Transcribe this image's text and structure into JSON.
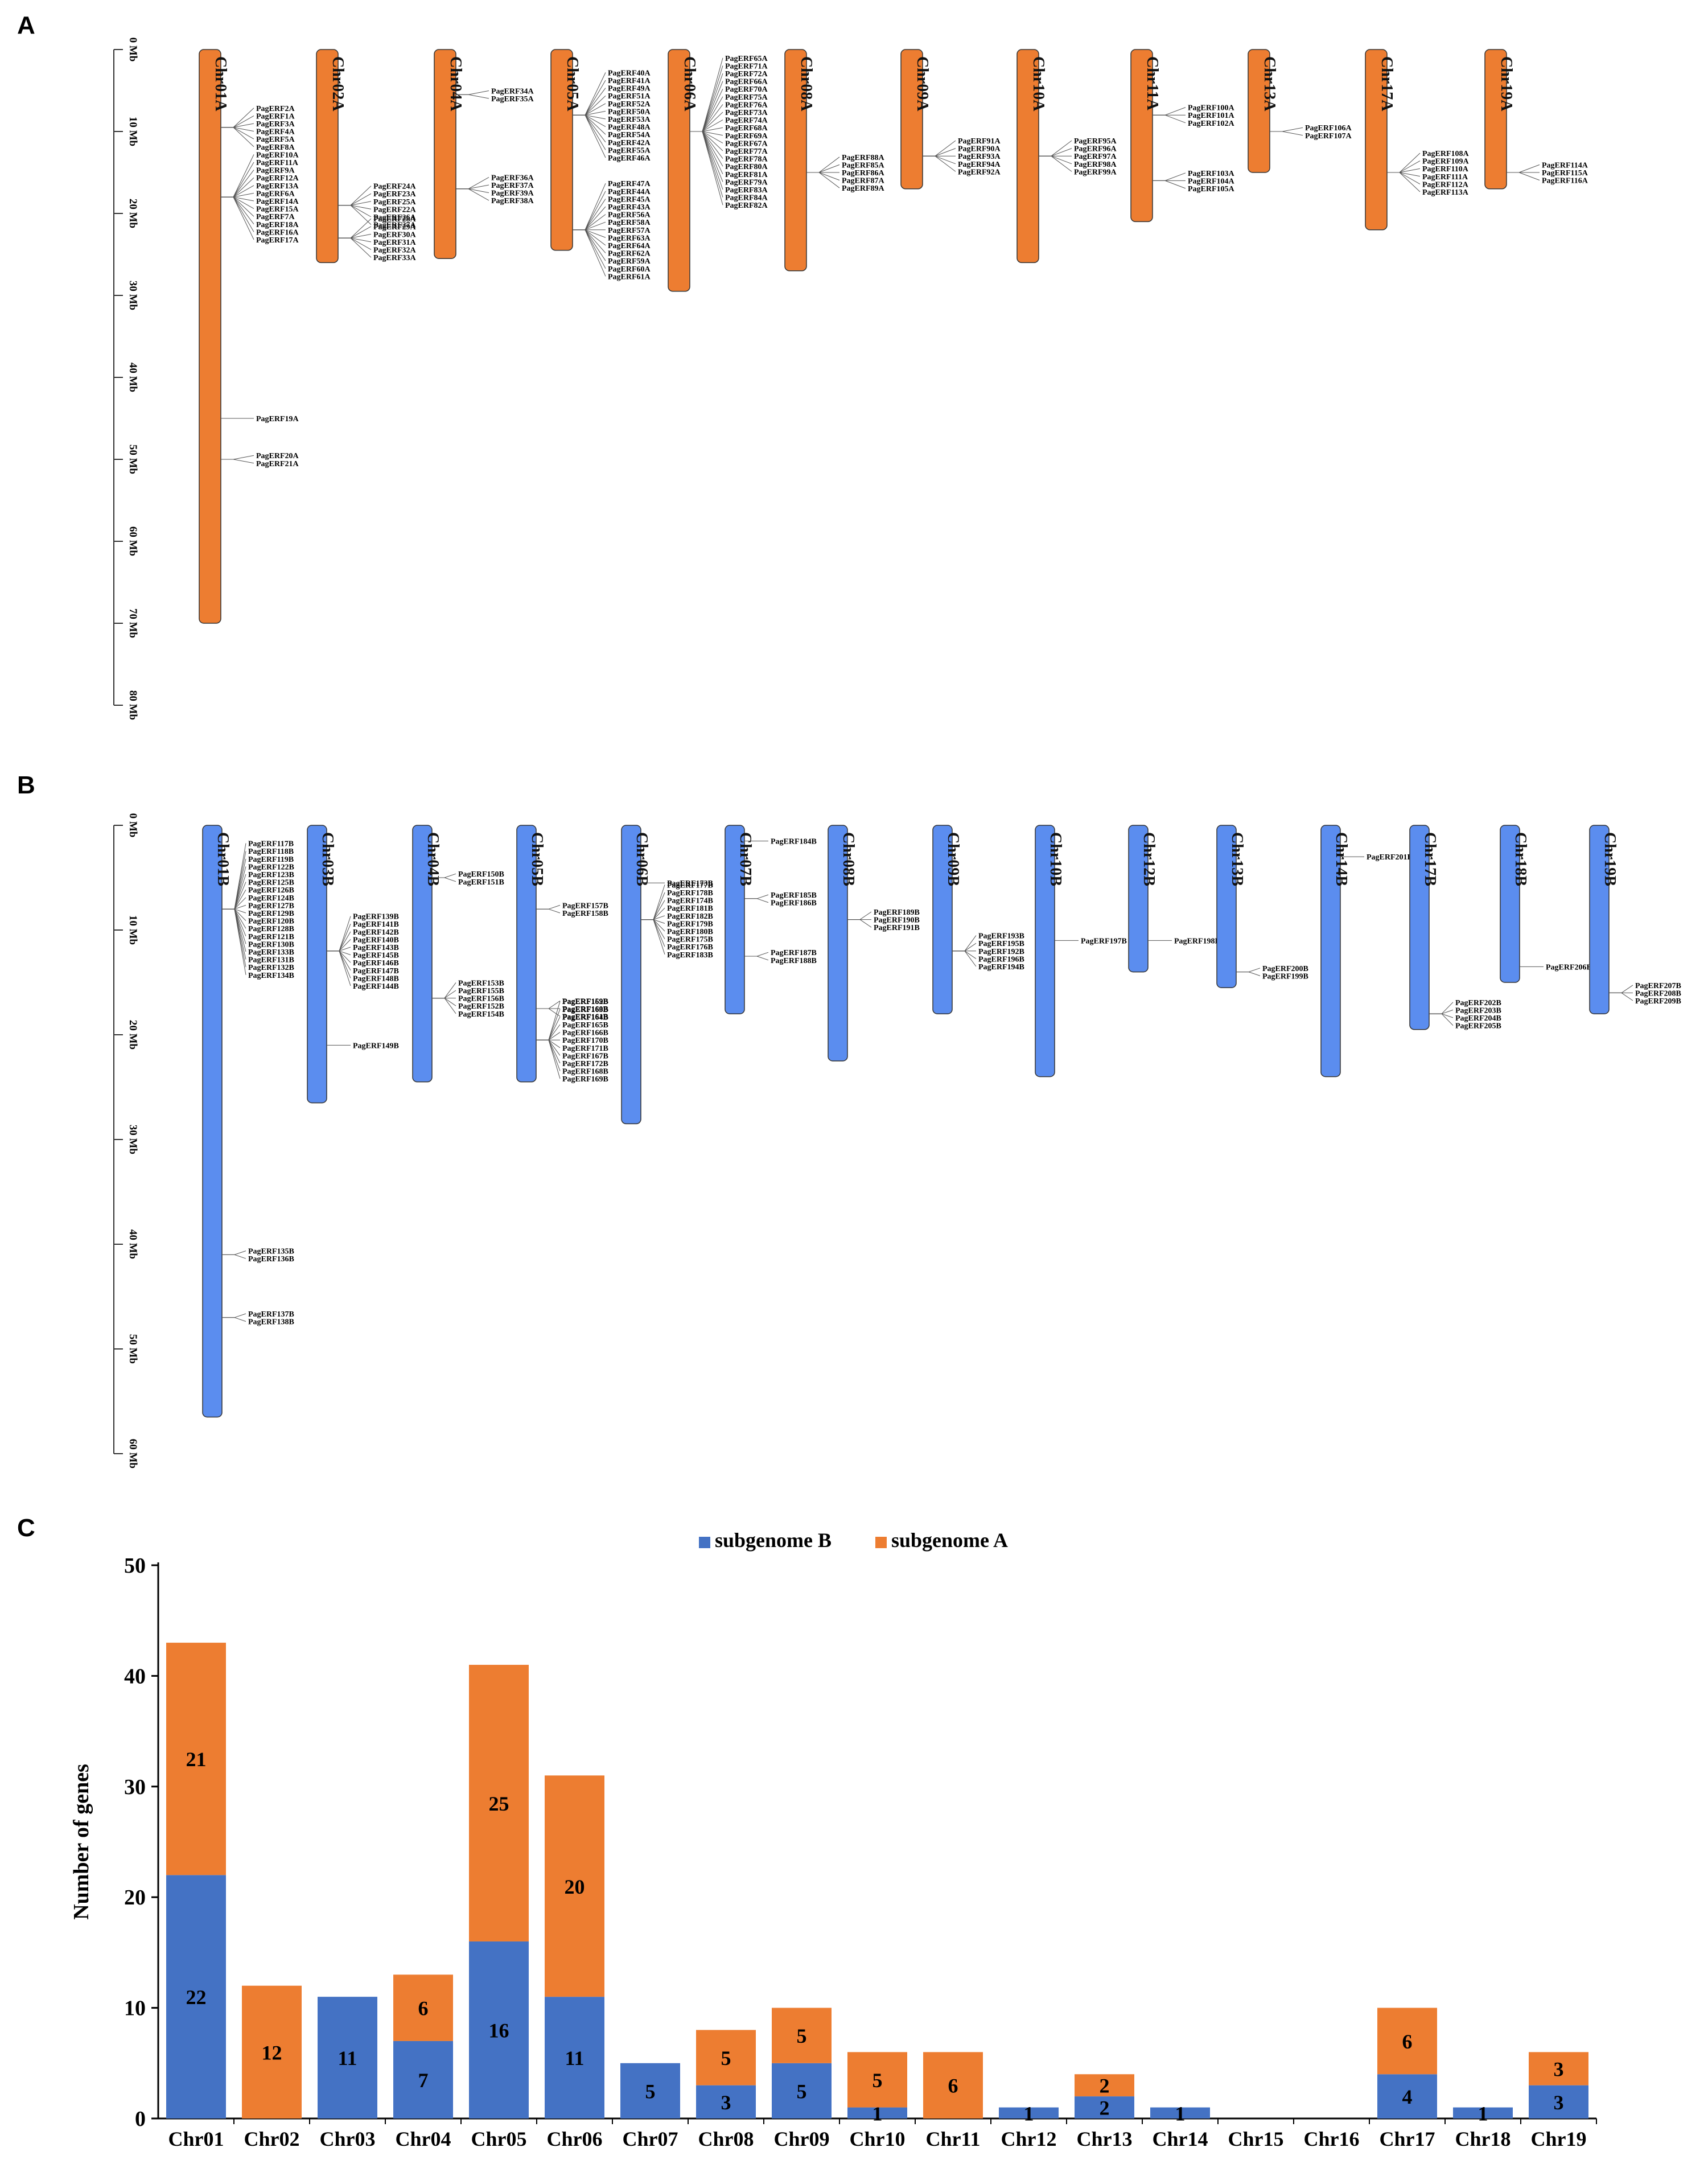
{
  "panels": {
    "a": {
      "label": "A",
      "axis_max_mb": 80,
      "ticks": [
        "0 Mb",
        "10 Mb",
        "20 Mb",
        "30 Mb",
        "40 Mb",
        "50 Mb",
        "60 Mb",
        "70 Mb",
        "80 Mb"
      ],
      "bar_color": "#ed7d31",
      "chromosomes": [
        {
          "name": "Chr01A",
          "length": 70,
          "groups": [
            {
              "pos": 9.5,
              "genes": [
                "PagERF2A",
                "PagERF1A",
                "PagERF3A",
                "PagERF4A",
                "PagERF5A",
                "PagERF8A"
              ]
            },
            {
              "pos": 18,
              "genes": [
                "PagERF10A",
                "PagERF11A",
                "PagERF9A",
                "PagERF12A",
                "PagERF13A",
                "PagERF6A",
                "PagERF14A",
                "PagERF15A",
                "PagERF7A",
                "PagERF18A",
                "PagERF16A",
                "PagERF17A"
              ]
            },
            {
              "pos": 45,
              "genes": [
                "PagERF19A"
              ]
            },
            {
              "pos": 50,
              "genes": [
                "PagERF20A",
                "PagERF21A"
              ]
            }
          ]
        },
        {
          "name": "Chr02A",
          "length": 26,
          "groups": [
            {
              "pos": 19,
              "genes": [
                "PagERF24A",
                "PagERF23A",
                "PagERF25A",
                "PagERF22A",
                "PagERF26A",
                "PagERF27A"
              ]
            },
            {
              "pos": 23,
              "genes": [
                "PagERF28A",
                "PagERF29A",
                "PagERF30A",
                "PagERF31A",
                "PagERF32A",
                "PagERF33A"
              ]
            }
          ]
        },
        {
          "name": "Chr04A",
          "length": 25.5,
          "groups": [
            {
              "pos": 5.5,
              "genes": [
                "PagERF34A",
                "PagERF35A"
              ]
            },
            {
              "pos": 17,
              "genes": [
                "PagERF36A",
                "PagERF37A",
                "PagERF39A",
                "PagERF38A"
              ]
            }
          ]
        },
        {
          "name": "Chr05A",
          "length": 24.5,
          "groups": [
            {
              "pos": 8,
              "genes": [
                "PagERF40A",
                "PagERF41A",
                "PagERF49A",
                "PagERF51A",
                "PagERF52A",
                "PagERF50A",
                "PagERF53A",
                "PagERF48A",
                "PagERF54A",
                "PagERF42A",
                "PagERF55A",
                "PagERF46A"
              ]
            },
            {
              "pos": 22,
              "genes": [
                "PagERF47A",
                "PagERF44A",
                "PagERF45A",
                "PagERF43A",
                "PagERF56A",
                "PagERF58A",
                "PagERF57A",
                "PagERF63A",
                "PagERF64A",
                "PagERF62A",
                "PagERF59A",
                "PagERF60A",
                "PagERF61A"
              ]
            }
          ]
        },
        {
          "name": "Chr06A",
          "length": 29.5,
          "groups": [
            {
              "pos": 10,
              "genes": [
                "PagERF65A",
                "PagERF71A",
                "PagERF72A",
                "PagERF66A",
                "PagERF70A",
                "PagERF75A",
                "PagERF76A",
                "PagERF73A",
                "PagERF74A",
                "PagERF68A",
                "PagERF69A",
                "PagERF67A",
                "PagERF77A",
                "PagERF78A",
                "PagERF80A",
                "PagERF81A",
                "PagERF79A",
                "PagERF83A",
                "PagERF84A",
                "PagERF82A"
              ]
            }
          ]
        },
        {
          "name": "Chr08A",
          "length": 27,
          "groups": [
            {
              "pos": 15,
              "genes": [
                "PagERF88A",
                "PagERF85A",
                "PagERF86A",
                "PagERF87A",
                "PagERF89A"
              ]
            }
          ]
        },
        {
          "name": "Chr09A",
          "length": 17,
          "groups": [
            {
              "pos": 13,
              "genes": [
                "PagERF91A",
                "PagERF90A",
                "PagERF93A",
                "PagERF94A",
                "PagERF92A"
              ]
            }
          ]
        },
        {
          "name": "Chr10A",
          "length": 26,
          "groups": [
            {
              "pos": 13,
              "genes": [
                "PagERF95A",
                "PagERF96A",
                "PagERF97A",
                "PagERF98A",
                "PagERF99A"
              ]
            }
          ]
        },
        {
          "name": "Chr11A",
          "length": 21,
          "groups": [
            {
              "pos": 8,
              "genes": [
                "PagERF100A",
                "PagERF101A",
                "PagERF102A"
              ]
            },
            {
              "pos": 16,
              "genes": [
                "PagERF103A",
                "PagERF104A",
                "PagERF105A"
              ]
            }
          ]
        },
        {
          "name": "Chr13A",
          "length": 15,
          "groups": [
            {
              "pos": 10,
              "genes": [
                "PagERF106A",
                "PagERF107A"
              ]
            }
          ]
        },
        {
          "name": "Chr17A",
          "length": 22,
          "groups": [
            {
              "pos": 15,
              "genes": [
                "PagERF108A",
                "PagERF109A",
                "PagERF110A",
                "PagERF111A",
                "PagERF112A",
                "PagERF113A"
              ]
            }
          ]
        },
        {
          "name": "Chr19A",
          "length": 17,
          "groups": [
            {
              "pos": 15,
              "genes": [
                "PagERF114A",
                "PagERF115A",
                "PagERF116A"
              ]
            }
          ]
        }
      ]
    },
    "b": {
      "label": "B",
      "axis_max_mb": 60,
      "ticks": [
        "0 Mb",
        "10 Mb",
        "20 Mb",
        "30 Mb",
        "40 Mb",
        "50 Mb",
        "60 Mb"
      ],
      "bar_color": "#5b8def",
      "chromosomes": [
        {
          "name": "Chr01B",
          "length": 56.5,
          "groups": [
            {
              "pos": 8,
              "genes": [
                "PagERF117B",
                "PagERF118B",
                "PagERF119B",
                "PagERF122B",
                "PagERF123B",
                "PagERF125B",
                "PagERF126B",
                "PagERF124B",
                "PagERF127B",
                "PagERF129B",
                "PagERF120B",
                "PagERF128B",
                "PagERF121B",
                "PagERF130B",
                "PagERF133B",
                "PagERF131B",
                "PagERF132B",
                "PagERF134B"
              ]
            },
            {
              "pos": 41,
              "genes": [
                "PagERF135B",
                "PagERF136B"
              ]
            },
            {
              "pos": 47,
              "genes": [
                "PagERF137B",
                "PagERF138B"
              ]
            }
          ]
        },
        {
          "name": "Chr03B",
          "length": 26.5,
          "groups": [
            {
              "pos": 12,
              "genes": [
                "PagERF139B",
                "PagERF141B",
                "PagERF142B",
                "PagERF140B",
                "PagERF143B",
                "PagERF145B",
                "PagERF146B",
                "PagERF147B",
                "PagERF148B",
                "PagERF144B"
              ]
            },
            {
              "pos": 21,
              "genes": [
                "PagERF149B"
              ]
            }
          ]
        },
        {
          "name": "Chr04B",
          "length": 24.5,
          "groups": [
            {
              "pos": 5,
              "genes": [
                "PagERF150B",
                "PagERF151B"
              ]
            },
            {
              "pos": 16.5,
              "genes": [
                "PagERF153B",
                "PagERF155B",
                "PagERF156B",
                "PagERF152B",
                "PagERF154B"
              ]
            }
          ]
        },
        {
          "name": "Chr05B",
          "length": 24.5,
          "groups": [
            {
              "pos": 8,
              "genes": [
                "PagERF157B",
                "PagERF158B"
              ]
            },
            {
              "pos": 17.5,
              "genes": [
                "PagERF159B",
                "PagERF160B",
                "PagERF161B"
              ]
            },
            {
              "pos": 20.5,
              "genes": [
                "PagERF162B",
                "PagERF163B",
                "PagERF164B",
                "PagERF165B",
                "PagERF166B",
                "PagERF170B",
                "PagERF171B",
                "PagERF167B",
                "PagERF172B",
                "PagERF168B",
                "PagERF169B"
              ]
            }
          ]
        },
        {
          "name": "Chr06B",
          "length": 28.5,
          "groups": [
            {
              "pos": 5.5,
              "genes": [
                "PagERF173B"
              ]
            },
            {
              "pos": 9,
              "genes": [
                "PagERF177B",
                "PagERF178B",
                "PagERF174B",
                "PagERF181B",
                "PagERF182B",
                "PagERF179B",
                "PagERF180B",
                "PagERF175B",
                "PagERF176B",
                "PagERF183B"
              ]
            }
          ]
        },
        {
          "name": "Chr07B",
          "length": 18,
          "groups": [
            {
              "pos": 1.5,
              "genes": [
                "PagERF184B"
              ]
            },
            {
              "pos": 7,
              "genes": [
                "PagERF185B",
                "PagERF186B"
              ]
            },
            {
              "pos": 12.5,
              "genes": [
                "PagERF187B",
                "PagERF188B"
              ]
            }
          ]
        },
        {
          "name": "Chr08B",
          "length": 22.5,
          "groups": [
            {
              "pos": 9,
              "genes": [
                "PagERF189B",
                "PagERF190B",
                "PagERF191B"
              ]
            }
          ]
        },
        {
          "name": "Chr09B",
          "length": 18,
          "groups": [
            {
              "pos": 12,
              "genes": [
                "PagERF193B",
                "PagERF195B",
                "PagERF192B",
                "PagERF196B",
                "PagERF194B"
              ]
            }
          ]
        },
        {
          "name": "Chr10B",
          "length": 24,
          "groups": [
            {
              "pos": 11,
              "genes": [
                "PagERF197B"
              ]
            }
          ]
        },
        {
          "name": "Chr12B",
          "length": 14,
          "groups": [
            {
              "pos": 11,
              "genes": [
                "PagERF198B"
              ]
            }
          ]
        },
        {
          "name": "Chr13B",
          "length": 15.5,
          "groups": [
            {
              "pos": 14,
              "genes": [
                "PagERF200B",
                "PagERF199B"
              ]
            }
          ]
        },
        {
          "name": "Chr14B",
          "length": 24,
          "groups": [
            {
              "pos": 3,
              "genes": [
                "PagERF201B"
              ]
            }
          ]
        },
        {
          "name": "Chr17B",
          "length": 19.5,
          "groups": [
            {
              "pos": 18,
              "genes": [
                "PagERF202B",
                "PagERF203B",
                "PagERF204B",
                "PagERF205B"
              ]
            }
          ]
        },
        {
          "name": "Chr18B",
          "length": 15,
          "groups": [
            {
              "pos": 13.5,
              "genes": [
                "PagERF206B"
              ]
            }
          ]
        },
        {
          "name": "Chr19B",
          "length": 18,
          "groups": [
            {
              "pos": 16,
              "genes": [
                "PagERF207B",
                "PagERF208B",
                "PagERF209B"
              ]
            }
          ]
        }
      ]
    },
    "c": {
      "label": "C"
    }
  },
  "chart_data": {
    "type": "bar",
    "stacked": true,
    "categories": [
      "Chr01",
      "Chr02",
      "Chr03",
      "Chr04",
      "Chr05",
      "Chr06",
      "Chr07",
      "Chr08",
      "Chr09",
      "Chr10",
      "Chr11",
      "Chr12",
      "Chr13",
      "Chr14",
      "Chr15",
      "Chr16",
      "Chr17",
      "Chr18",
      "Chr19"
    ],
    "series": [
      {
        "name": "subgenome B",
        "color": "#4472c4",
        "values": [
          22,
          0,
          11,
          7,
          16,
          11,
          5,
          3,
          5,
          1,
          0,
          1,
          2,
          1,
          0,
          0,
          4,
          1,
          3
        ]
      },
      {
        "name": "subgenome A",
        "color": "#ed7d31",
        "values": [
          21,
          12,
          0,
          6,
          25,
          20,
          0,
          5,
          5,
          5,
          6,
          0,
          2,
          0,
          0,
          0,
          6,
          0,
          3
        ]
      }
    ],
    "title": "",
    "xlabel": "",
    "ylabel": "Number of genes",
    "ylim": [
      0,
      50
    ],
    "yticks": [
      0,
      10,
      20,
      30,
      40,
      50
    ],
    "legend": "top-center"
  }
}
